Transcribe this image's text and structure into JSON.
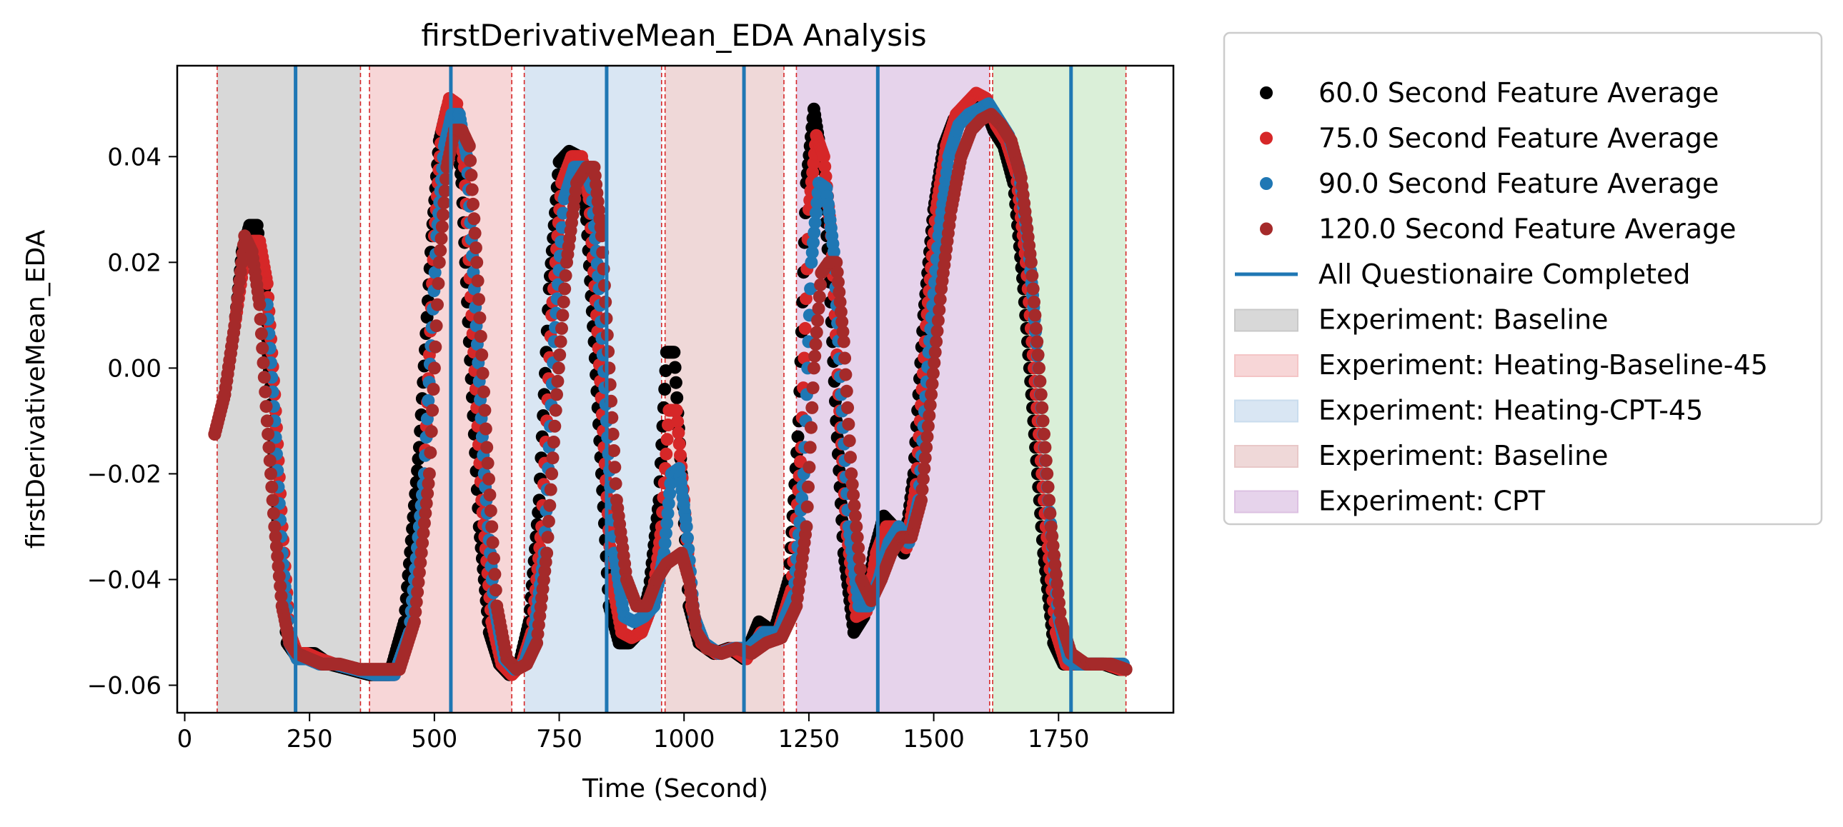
{
  "chart_data": {
    "type": "scatter",
    "title": "firstDerivativeMean_EDA Analysis",
    "xlabel": "Time (Second)",
    "ylabel": "firstDerivativeMean_EDA",
    "xlim": [
      -15,
      1980
    ],
    "ylim": [
      -0.0652,
      0.0572
    ],
    "xticks": [
      0,
      250,
      500,
      750,
      1000,
      1250,
      1500,
      1750
    ],
    "xtick_labels": [
      "0",
      "250",
      "500",
      "750",
      "1000",
      "1250",
      "1500",
      "1750"
    ],
    "yticks": [
      -0.06,
      -0.04,
      -0.02,
      0.0,
      0.02,
      0.04
    ],
    "ytick_labels": [
      "−0.06",
      "−0.04",
      "−0.02",
      "0.00",
      "0.02",
      "0.04"
    ],
    "spans": [
      {
        "label": "Experiment: Baseline",
        "start": 65,
        "end": 352,
        "color": "#c8c8c8",
        "in_legend": true
      },
      {
        "label": "Experiment: Heating-Baseline-45",
        "start": 370,
        "end": 655,
        "color": "#f4c5c6",
        "in_legend": true
      },
      {
        "label": "Experiment: Heating-CPT-45",
        "start": 680,
        "end": 955,
        "color": "#c9dcee",
        "in_legend": true
      },
      {
        "label": "Experiment: Baseline",
        "start": 962,
        "end": 1200,
        "color": "#e8c8c8",
        "in_legend": true
      },
      {
        "label": "Experiment: CPT",
        "start": 1225,
        "end": 1612,
        "color": "#dcc0e2",
        "in_legend": true
      },
      {
        "label": "",
        "start": 1618,
        "end": 1885,
        "color": "#cbe8c8",
        "in_legend": false
      }
    ],
    "dashed_lines": [
      65,
      352,
      370,
      655,
      680,
      955,
      962,
      1200,
      1225,
      1612,
      1618,
      1885
    ],
    "questionnaire_lines": [
      222,
      533,
      845,
      1120,
      1388,
      1775
    ],
    "series": [
      {
        "name": "60.0 Second Feature Average",
        "color": "#000000",
        "x": [
          60,
          80,
          100,
          115,
          130,
          145,
          160,
          175,
          190,
          205,
          220,
          240,
          260,
          290,
          330,
          370,
          410,
          440,
          470,
          495,
          510,
          525,
          540,
          555,
          570,
          590,
          610,
          630,
          650,
          670,
          690,
          710,
          730,
          750,
          770,
          790,
          805,
          820,
          835,
          850,
          870,
          890,
          910,
          930,
          950,
          965,
          980,
          995,
          1010,
          1030,
          1060,
          1090,
          1120,
          1150,
          1180,
          1210,
          1230,
          1245,
          1260,
          1275,
          1290,
          1305,
          1320,
          1340,
          1360,
          1380,
          1400,
          1420,
          1440,
          1460,
          1480,
          1500,
          1520,
          1540,
          1560,
          1580,
          1600,
          1620,
          1640,
          1660,
          1680,
          1700,
          1720,
          1740,
          1760,
          1775,
          1790,
          1810,
          1840,
          1870,
          1885
        ],
        "y": [
          -0.0125,
          -0.005,
          0.008,
          0.022,
          0.027,
          0.027,
          0.015,
          -0.01,
          -0.035,
          -0.052,
          -0.054,
          -0.054,
          -0.054,
          -0.056,
          -0.057,
          -0.058,
          -0.058,
          -0.048,
          -0.015,
          0.025,
          0.043,
          0.049,
          0.049,
          0.035,
          0.005,
          -0.03,
          -0.05,
          -0.056,
          -0.058,
          -0.056,
          -0.048,
          -0.025,
          0.015,
          0.039,
          0.041,
          0.04,
          0.028,
          0.005,
          -0.02,
          -0.045,
          -0.052,
          -0.052,
          -0.05,
          -0.042,
          -0.025,
          0.003,
          0.003,
          -0.02,
          -0.045,
          -0.052,
          -0.054,
          -0.053,
          -0.055,
          -0.048,
          -0.05,
          -0.04,
          -0.01,
          0.035,
          0.049,
          0.04,
          0.02,
          -0.01,
          -0.035,
          -0.05,
          -0.047,
          -0.035,
          -0.028,
          -0.03,
          -0.035,
          -0.02,
          0.01,
          0.03,
          0.042,
          0.047,
          0.049,
          0.05,
          0.05,
          0.045,
          0.042,
          0.035,
          0.015,
          -0.01,
          -0.035,
          -0.052,
          -0.056,
          -0.056,
          -0.056,
          -0.056,
          -0.056,
          -0.057,
          -0.057
        ]
      },
      {
        "name": "75.0 Second Feature Average",
        "color": "#d62728",
        "x": [
          60,
          80,
          100,
          120,
          135,
          150,
          165,
          180,
          195,
          210,
          225,
          245,
          270,
          300,
          340,
          380,
          420,
          450,
          480,
          500,
          515,
          530,
          545,
          560,
          575,
          595,
          615,
          635,
          655,
          675,
          695,
          715,
          735,
          755,
          775,
          795,
          810,
          825,
          840,
          855,
          875,
          895,
          915,
          935,
          955,
          970,
          985,
          1000,
          1015,
          1035,
          1065,
          1095,
          1125,
          1155,
          1185,
          1215,
          1235,
          1250,
          1265,
          1280,
          1295,
          1310,
          1325,
          1345,
          1365,
          1385,
          1405,
          1425,
          1445,
          1465,
          1485,
          1505,
          1525,
          1545,
          1565,
          1585,
          1605,
          1625,
          1645,
          1665,
          1685,
          1705,
          1725,
          1745,
          1765,
          1780,
          1795,
          1815,
          1845,
          1875,
          1885
        ],
        "y": [
          -0.0125,
          -0.005,
          0.008,
          0.021,
          0.024,
          0.024,
          0.016,
          -0.005,
          -0.03,
          -0.05,
          -0.054,
          -0.054,
          -0.055,
          -0.056,
          -0.057,
          -0.058,
          -0.058,
          -0.05,
          -0.02,
          0.025,
          0.045,
          0.051,
          0.05,
          0.038,
          0.01,
          -0.025,
          -0.048,
          -0.056,
          -0.058,
          -0.056,
          -0.05,
          -0.03,
          0.01,
          0.035,
          0.04,
          0.04,
          0.032,
          0.01,
          -0.015,
          -0.04,
          -0.05,
          -0.051,
          -0.05,
          -0.045,
          -0.03,
          -0.008,
          -0.008,
          -0.025,
          -0.045,
          -0.052,
          -0.054,
          -0.053,
          -0.055,
          -0.05,
          -0.051,
          -0.042,
          -0.015,
          0.03,
          0.044,
          0.04,
          0.025,
          -0.005,
          -0.03,
          -0.047,
          -0.046,
          -0.035,
          -0.03,
          -0.03,
          -0.034,
          -0.022,
          0.008,
          0.03,
          0.042,
          0.048,
          0.05,
          0.052,
          0.051,
          0.046,
          0.043,
          0.037,
          0.02,
          -0.005,
          -0.03,
          -0.05,
          -0.056,
          -0.056,
          -0.056,
          -0.056,
          -0.056,
          -0.057,
          -0.057
        ]
      },
      {
        "name": "90.0 Second Feature Average",
        "color": "#1f77b4",
        "x": [
          165,
          180,
          195,
          210,
          225,
          245,
          270,
          300,
          340,
          380,
          420,
          450,
          480,
          505,
          520,
          535,
          550,
          565,
          580,
          600,
          620,
          640,
          660,
          680,
          700,
          720,
          740,
          760,
          780,
          800,
          815,
          830,
          845,
          860,
          880,
          900,
          920,
          940,
          960,
          975,
          990,
          1005,
          1020,
          1040,
          1070,
          1100,
          1130,
          1160,
          1190,
          1220,
          1240,
          1255,
          1270,
          1285,
          1300,
          1315,
          1330,
          1350,
          1370,
          1390,
          1410,
          1430,
          1450,
          1470,
          1490,
          1510,
          1530,
          1550,
          1570,
          1590,
          1610,
          1630,
          1650,
          1670,
          1690,
          1710,
          1730,
          1750,
          1770,
          1785,
          1800,
          1820,
          1850,
          1880
        ],
        "y": [
          0.012,
          -0.01,
          -0.035,
          -0.052,
          -0.055,
          -0.055,
          -0.056,
          -0.056,
          -0.057,
          -0.058,
          -0.058,
          -0.05,
          -0.02,
          0.025,
          0.042,
          0.048,
          0.048,
          0.04,
          0.015,
          -0.02,
          -0.045,
          -0.055,
          -0.057,
          -0.056,
          -0.05,
          -0.035,
          0.005,
          0.032,
          0.038,
          0.038,
          0.034,
          0.015,
          -0.01,
          -0.035,
          -0.047,
          -0.048,
          -0.047,
          -0.045,
          -0.035,
          -0.02,
          -0.019,
          -0.03,
          -0.047,
          -0.052,
          -0.054,
          -0.053,
          -0.053,
          -0.05,
          -0.05,
          -0.043,
          -0.02,
          0.02,
          0.035,
          0.034,
          0.022,
          -0.005,
          -0.03,
          -0.045,
          -0.045,
          -0.04,
          -0.033,
          -0.03,
          -0.033,
          -0.025,
          0.003,
          0.025,
          0.04,
          0.046,
          0.048,
          0.049,
          0.05,
          0.047,
          0.044,
          0.038,
          0.023,
          0.0,
          -0.025,
          -0.047,
          -0.055,
          -0.056,
          -0.056,
          -0.056,
          -0.056,
          -0.056
        ]
      },
      {
        "name": "120.0 Second Feature Average",
        "color": "#a52a2a",
        "x": [
          60,
          80,
          100,
          120,
          135,
          150,
          165,
          180,
          195,
          210,
          225,
          250,
          275,
          310,
          350,
          390,
          430,
          460,
          490,
          510,
          525,
          540,
          555,
          570,
          585,
          605,
          625,
          645,
          665,
          685,
          705,
          725,
          745,
          765,
          785,
          805,
          820,
          835,
          850,
          865,
          885,
          905,
          925,
          945,
          965,
          980,
          995,
          1010,
          1025,
          1045,
          1075,
          1105,
          1135,
          1165,
          1195,
          1225,
          1245,
          1260,
          1275,
          1290,
          1305,
          1320,
          1335,
          1355,
          1375,
          1395,
          1415,
          1435,
          1455,
          1475,
          1495,
          1515,
          1535,
          1555,
          1575,
          1595,
          1615,
          1635,
          1655,
          1675,
          1695,
          1715,
          1735,
          1755,
          1775,
          1790,
          1805,
          1825,
          1855,
          1885
        ],
        "y": [
          -0.0125,
          -0.005,
          0.008,
          0.025,
          0.022,
          0.012,
          -0.01,
          -0.03,
          -0.045,
          -0.052,
          -0.054,
          -0.055,
          -0.056,
          -0.056,
          -0.057,
          -0.057,
          -0.057,
          -0.048,
          -0.02,
          0.02,
          0.038,
          0.045,
          0.045,
          0.042,
          0.02,
          -0.015,
          -0.045,
          -0.055,
          -0.057,
          -0.056,
          -0.052,
          -0.035,
          -0.005,
          0.02,
          0.035,
          0.038,
          0.038,
          0.025,
          0.0,
          -0.025,
          -0.04,
          -0.045,
          -0.045,
          -0.04,
          -0.037,
          -0.036,
          -0.035,
          -0.04,
          -0.05,
          -0.053,
          -0.054,
          -0.053,
          -0.054,
          -0.052,
          -0.051,
          -0.045,
          -0.03,
          0.0,
          0.018,
          0.02,
          0.02,
          0.005,
          -0.02,
          -0.04,
          -0.044,
          -0.04,
          -0.035,
          -0.032,
          -0.032,
          -0.025,
          -0.005,
          0.015,
          0.03,
          0.04,
          0.045,
          0.047,
          0.048,
          0.046,
          0.043,
          0.036,
          0.02,
          -0.005,
          -0.03,
          -0.048,
          -0.054,
          -0.055,
          -0.056,
          -0.056,
          -0.056,
          -0.057
        ]
      }
    ],
    "legend": [
      {
        "kind": "marker",
        "color": "#000000",
        "label": "60.0 Second Feature Average"
      },
      {
        "kind": "marker",
        "color": "#d62728",
        "label": "75.0 Second Feature Average"
      },
      {
        "kind": "marker",
        "color": "#1f77b4",
        "label": "90.0 Second Feature Average"
      },
      {
        "kind": "marker",
        "color": "#a52a2a",
        "label": "120.0 Second Feature Average"
      },
      {
        "kind": "line",
        "color": "#1f77b4",
        "label": "All Questionaire Completed"
      },
      {
        "kind": "patch",
        "color": "#c8c8c8",
        "label": "Experiment: Baseline"
      },
      {
        "kind": "patch",
        "color": "#f4c5c6",
        "label": "Experiment: Heating-Baseline-45"
      },
      {
        "kind": "patch",
        "color": "#c9dcee",
        "label": "Experiment: Heating-CPT-45"
      },
      {
        "kind": "patch",
        "color": "#e8c8c8",
        "label": "Experiment: Baseline"
      },
      {
        "kind": "patch",
        "color": "#dcc0e2",
        "label": "Experiment: CPT"
      }
    ],
    "legend_position": "outside-right-top"
  }
}
